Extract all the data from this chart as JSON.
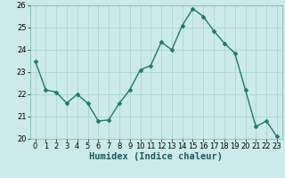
{
  "x": [
    0,
    1,
    2,
    3,
    4,
    5,
    6,
    7,
    8,
    9,
    10,
    11,
    12,
    13,
    14,
    15,
    16,
    17,
    18,
    19,
    20,
    21,
    22,
    23
  ],
  "y": [
    23.5,
    22.2,
    22.1,
    21.6,
    22.0,
    21.6,
    20.8,
    20.85,
    21.6,
    22.2,
    23.1,
    23.3,
    24.35,
    24.0,
    25.1,
    25.85,
    25.5,
    24.85,
    24.3,
    23.85,
    22.2,
    20.55,
    20.8,
    20.1
  ],
  "line_color": "#1a7a6e",
  "marker_color": "#1a7a6e",
  "bg_color": "#cceaea",
  "grid_color": "#aad4d4",
  "xlabel": "Humidex (Indice chaleur)",
  "xlim": [
    -0.5,
    23.5
  ],
  "ylim": [
    20.0,
    26.0
  ],
  "yticks": [
    20,
    21,
    22,
    23,
    24,
    25,
    26
  ],
  "xticks": [
    0,
    1,
    2,
    3,
    4,
    5,
    6,
    7,
    8,
    9,
    10,
    11,
    12,
    13,
    14,
    15,
    16,
    17,
    18,
    19,
    20,
    21,
    22,
    23
  ],
  "tick_fontsize": 6.0,
  "xlabel_fontsize": 7.5,
  "marker_size": 2.5,
  "line_width": 1.0
}
